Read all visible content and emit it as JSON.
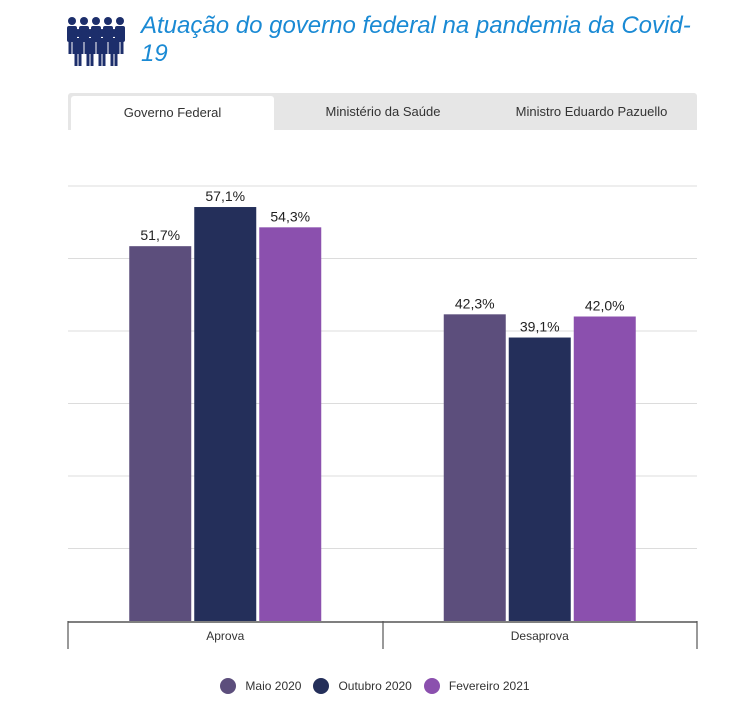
{
  "header": {
    "title": "Atuação do governo federal na pandemia da Covid-19",
    "icon": "people-group-icon",
    "accent": "#1a8ad4"
  },
  "tabs": [
    {
      "label": "Governo Federal",
      "active": true
    },
    {
      "label": "Ministério da Saúde",
      "active": false
    },
    {
      "label": "Ministro Eduardo Pazuello",
      "active": false
    }
  ],
  "chart_data": {
    "type": "bar",
    "categories": [
      "Aprova",
      "Desaprova"
    ],
    "series": [
      {
        "name": "Maio 2020",
        "color": "#5c4e7c",
        "values": [
          51.7,
          42.3
        ],
        "labels": [
          "51,7%",
          "42,3%"
        ]
      },
      {
        "name": "Outubro 2020",
        "color": "#242f5a",
        "values": [
          57.1,
          39.1
        ],
        "labels": [
          "57,1%",
          "39,1%"
        ]
      },
      {
        "name": "Fevereiro 2021",
        "color": "#8b50ae",
        "values": [
          54.3,
          42.0
        ],
        "labels": [
          "54,3%",
          "42,0%"
        ]
      }
    ],
    "ylim": [
      0,
      60
    ],
    "grid": true,
    "legend": "bottom",
    "xlabel": "",
    "ylabel": ""
  }
}
